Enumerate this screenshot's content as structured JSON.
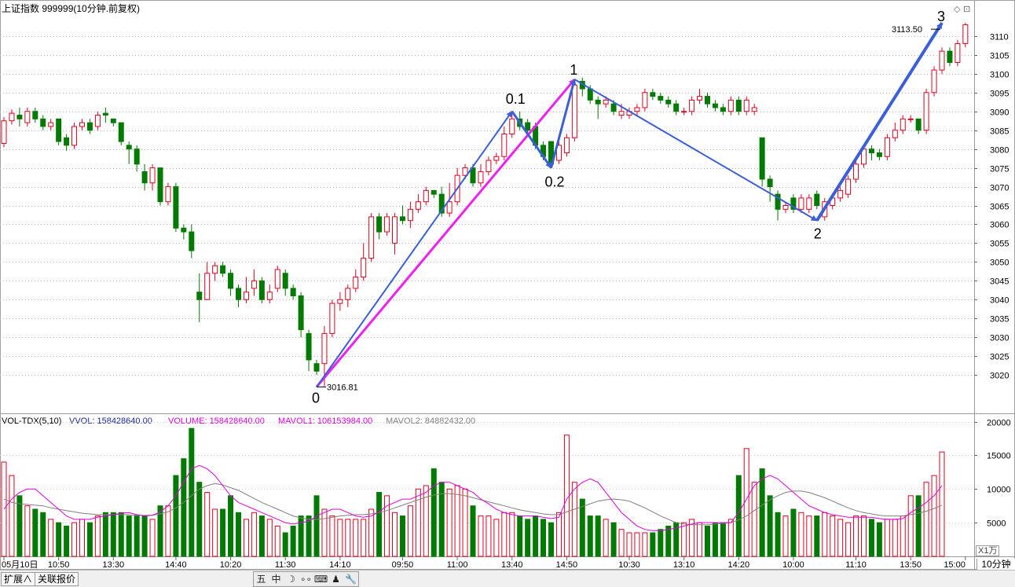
{
  "header": {
    "title": "上证指数 999999(10分钟.前复权)"
  },
  "vol_header": {
    "indicator": "VOL-TDX(5,10)",
    "vvol": "VVOL: 158428640.00",
    "volume": "VOLUME: 158428640.00",
    "mavol1": "MAVOL1: 106153984.00",
    "mavol2": "MAVOL2: 84882432.00"
  },
  "price_labels": {
    "low": "3016.81",
    "high": "3113.50"
  },
  "wave_labels": [
    "0",
    "0.1",
    "0.2",
    "1",
    "2",
    "3"
  ],
  "x_axis_labels": [
    "05月10日",
    "10:50",
    "13:30",
    "14:40",
    "10:20",
    "11:30",
    "14:10",
    "09:50",
    "11:00",
    "13:40",
    "14:50",
    "10:30",
    "13:10",
    "14:20",
    "10:00",
    "11:10",
    "13:50",
    "15:00"
  ],
  "volume_unit": "X1万",
  "period": "10分钟",
  "status_bar": {
    "tab_expand": "扩展∧",
    "tab_related": "关联报价",
    "tools": [
      "五",
      "中",
      "☽",
      "∘∘",
      "⌨",
      "♟",
      "🔧"
    ]
  },
  "colors": {
    "up": "#e0001e",
    "down": "#007a00",
    "mavol1": "#e000e0",
    "mavol2": "#808080",
    "wave_arrow": "#3a5fd8",
    "wave_pink": "#ee22ee"
  },
  "chart_data": [
    {
      "type": "candlestick",
      "ylim": [
        3010,
        3115
      ],
      "yticks": [
        3020,
        3025,
        3030,
        3035,
        3040,
        3045,
        3050,
        3055,
        3060,
        3065,
        3070,
        3075,
        3080,
        3085,
        3090,
        3095,
        3100,
        3105,
        3110
      ],
      "candles": [
        [
          3081.5,
          3087.5,
          3088.5,
          3080.5
        ],
        [
          3087.5,
          3089.5,
          3090.5,
          3086.5
        ],
        [
          3089,
          3088,
          3091,
          3086
        ],
        [
          3087,
          3090,
          3091,
          3086
        ],
        [
          3090,
          3088,
          3091,
          3087
        ],
        [
          3088,
          3086,
          3089,
          3085
        ],
        [
          3086,
          3087,
          3088,
          3085
        ],
        [
          3088,
          3082,
          3088,
          3081
        ],
        [
          3083,
          3081,
          3084,
          3079.5
        ],
        [
          3081,
          3086,
          3087,
          3080
        ],
        [
          3086,
          3087,
          3088,
          3085
        ],
        [
          3087,
          3085,
          3088,
          3084
        ],
        [
          3086,
          3089,
          3090,
          3085
        ],
        [
          3089.5,
          3089,
          3091,
          3087
        ],
        [
          3088,
          3087,
          3088,
          3086
        ],
        [
          3087,
          3082,
          3087,
          3081
        ],
        [
          3081,
          3080,
          3082,
          3076
        ],
        [
          3080,
          3076,
          3081,
          3074
        ],
        [
          3074,
          3071,
          3076,
          3069
        ],
        [
          3071,
          3075,
          3076,
          3069
        ],
        [
          3075,
          3066,
          3075,
          3065
        ],
        [
          3066,
          3070,
          3071,
          3065
        ],
        [
          3070,
          3059,
          3071,
          3058
        ],
        [
          3059,
          3058,
          3060,
          3056
        ],
        [
          3058,
          3053,
          3060,
          3051
        ],
        [
          3042,
          3040,
          3047,
          3034
        ],
        [
          3040,
          3047,
          3050,
          3040
        ],
        [
          3047,
          3049,
          3050,
          3045
        ],
        [
          3049,
          3047,
          3050,
          3046
        ],
        [
          3047,
          3043,
          3048,
          3041
        ],
        [
          3043,
          3040,
          3044,
          3038
        ],
        [
          3040,
          3042,
          3046,
          3039
        ],
        [
          3043,
          3045,
          3048,
          3041
        ],
        [
          3045,
          3040,
          3046,
          3039
        ],
        [
          3040,
          3042,
          3044,
          3039
        ],
        [
          3043,
          3048,
          3049,
          3042
        ],
        [
          3047,
          3043,
          3048,
          3041
        ],
        [
          3043,
          3041,
          3044,
          3040
        ],
        [
          3041,
          3032,
          3042,
          3030
        ],
        [
          3031,
          3024,
          3032,
          3021
        ],
        [
          3023,
          3021,
          3024,
          3020
        ],
        [
          3023,
          3031,
          3033,
          3017
        ],
        [
          3031,
          3039,
          3040,
          3030
        ],
        [
          3039,
          3040,
          3042,
          3037
        ],
        [
          3040,
          3043,
          3044,
          3038
        ],
        [
          3043,
          3046,
          3048,
          3042
        ],
        [
          3046,
          3051,
          3055,
          3045
        ],
        [
          3051,
          3062,
          3063,
          3050
        ],
        [
          3062,
          3058,
          3063,
          3056
        ],
        [
          3058,
          3062,
          3063,
          3057
        ],
        [
          3055,
          3062,
          3063,
          3052
        ],
        [
          3062,
          3061,
          3065,
          3060
        ],
        [
          3061,
          3064,
          3066,
          3059
        ],
        [
          3064,
          3066,
          3068,
          3063
        ],
        [
          3066,
          3069,
          3070,
          3065
        ],
        [
          3069,
          3068,
          3069,
          3067
        ],
        [
          3068,
          3063,
          3070,
          3062
        ],
        [
          3063,
          3066,
          3071,
          3062
        ],
        [
          3066,
          3073,
          3075,
          3065
        ],
        [
          3073,
          3075,
          3076,
          3072
        ],
        [
          3075,
          3071,
          3076,
          3070
        ],
        [
          3071,
          3074,
          3076,
          3070
        ],
        [
          3074,
          3077,
          3078,
          3073
        ],
        [
          3077,
          3078,
          3079,
          3076
        ],
        [
          3078,
          3084,
          3086,
          3077
        ],
        [
          3084,
          3088,
          3090,
          3083
        ],
        [
          3088,
          3086,
          3090,
          3085
        ],
        [
          3087,
          3085,
          3088,
          3084
        ],
        [
          3086,
          3081,
          3087,
          3080
        ],
        [
          3081,
          3078,
          3082,
          3077
        ],
        [
          3082,
          3076,
          3082,
          3075
        ],
        [
          3077,
          3081,
          3082,
          3076
        ],
        [
          3079,
          3083,
          3084,
          3078
        ],
        [
          3083,
          3097,
          3098,
          3082
        ],
        [
          3098,
          3096,
          3099,
          3094
        ],
        [
          3096,
          3093,
          3097,
          3092
        ],
        [
          3093,
          3092,
          3094,
          3088
        ],
        [
          3092,
          3093,
          3094,
          3091
        ],
        [
          3092,
          3090,
          3093,
          3089
        ],
        [
          3089,
          3090,
          3092,
          3088
        ],
        [
          3089,
          3090,
          3091,
          3088
        ],
        [
          3090,
          3091,
          3092,
          3089
        ],
        [
          3091,
          3095,
          3096,
          3090
        ],
        [
          3095,
          3094,
          3096,
          3093
        ],
        [
          3094,
          3093,
          3095,
          3092
        ],
        [
          3093,
          3092,
          3094,
          3091
        ],
        [
          3092,
          3090,
          3093,
          3089
        ],
        [
          3090,
          3090,
          3091,
          3089
        ],
        [
          3090,
          3093,
          3094,
          3089
        ],
        [
          3093,
          3094,
          3096,
          3092
        ],
        [
          3094,
          3092,
          3095,
          3091
        ],
        [
          3092,
          3091,
          3093,
          3090
        ],
        [
          3091,
          3090,
          3092,
          3089
        ],
        [
          3090,
          3093,
          3094,
          3089
        ],
        [
          3093,
          3090,
          3094,
          3089
        ],
        [
          3090,
          3093,
          3094,
          3089
        ],
        [
          3090,
          3091,
          3092,
          3089
        ],
        [
          3083,
          3072,
          3083,
          3070
        ],
        [
          3072,
          3070,
          3073,
          3066
        ],
        [
          3068,
          3064,
          3069,
          3061
        ],
        [
          3064,
          3065,
          3066,
          3063
        ],
        [
          3067,
          3064,
          3068,
          3063
        ],
        [
          3064,
          3067,
          3068,
          3063
        ],
        [
          3064,
          3067,
          3068,
          3063
        ],
        [
          3068,
          3065,
          3069,
          3064
        ],
        [
          3062,
          3066,
          3067,
          3061
        ],
        [
          3065,
          3067,
          3068,
          3064
        ],
        [
          3067,
          3069,
          3070,
          3066
        ],
        [
          3068,
          3072,
          3073,
          3067
        ],
        [
          3072,
          3076,
          3077,
          3071
        ],
        [
          3076,
          3080,
          3081,
          3075
        ],
        [
          3080,
          3079,
          3081,
          3077
        ],
        [
          3079,
          3078,
          3080,
          3077
        ],
        [
          3078,
          3083,
          3084,
          3077
        ],
        [
          3083,
          3085,
          3087,
          3082
        ],
        [
          3085,
          3088,
          3089,
          3084
        ],
        [
          3088,
          3088,
          3089,
          3087
        ],
        [
          3088,
          3085,
          3088,
          3084
        ],
        [
          3085,
          3095,
          3096,
          3084
        ],
        [
          3095,
          3101,
          3102,
          3094
        ],
        [
          3101,
          3106,
          3107,
          3100
        ],
        [
          3106,
          3103,
          3107,
          3102
        ],
        [
          3103,
          3108,
          3109,
          3102
        ],
        [
          3108,
          3113,
          3113.5,
          3107
        ]
      ]
    },
    {
      "type": "bar",
      "ylim": [
        0,
        21000
      ],
      "yticks": [
        5000,
        10000,
        15000,
        20000
      ],
      "series": [
        {
          "name": "VOLUME",
          "values": [
            14000,
            12000,
            9000,
            7500,
            7000,
            6500,
            5500,
            5000,
            4500,
            5000,
            5500,
            5000,
            6000,
            6500,
            6500,
            6500,
            6000,
            6000,
            6000,
            5500,
            7500,
            7500,
            12000,
            14500,
            19000,
            11000,
            9500,
            7000,
            7000,
            9000,
            6500,
            5500,
            6500,
            6000,
            5500,
            4500,
            3500,
            4500,
            6000,
            6000,
            9000,
            7000,
            6000,
            5500,
            5500,
            5500,
            5500,
            7000,
            9500,
            9000,
            6500,
            6000,
            7500,
            10000,
            10500,
            13000,
            11000,
            10000,
            10500,
            10000,
            7500,
            6000,
            6000,
            5500,
            6500,
            6500,
            6000,
            5500,
            6000,
            5500,
            5000,
            6500,
            18000,
            11000,
            8500,
            6000,
            6000,
            5500,
            5000,
            4000,
            3500,
            3500,
            3500,
            3500,
            4000,
            4500,
            5000,
            5000,
            5500,
            5000,
            4500,
            5000,
            5000,
            5500,
            12000,
            16000,
            11000,
            13000,
            9000,
            6500,
            6000,
            7000,
            6500,
            6000,
            6000,
            6500,
            6000,
            5500,
            5000,
            6000,
            6000,
            5500,
            5000,
            5500,
            5500,
            6000,
            9000,
            9000,
            11000,
            12000,
            15500
          ]
        },
        {
          "name": "MAVOL1",
          "values": [
            7000,
            8500,
            9500,
            10000,
            10000,
            9000,
            8000,
            7000,
            6000,
            5500,
            5500,
            5500,
            5800,
            6000,
            6200,
            6400,
            6500,
            6200,
            6000,
            6100,
            6600,
            7500,
            9000,
            11000,
            13000,
            13500,
            13000,
            12000,
            10500,
            9000,
            8000,
            7500,
            7000,
            6500,
            6000,
            5500,
            5000,
            4800,
            5000,
            5200,
            6000,
            6500,
            7000,
            7000,
            6500,
            6000,
            5800,
            6000,
            6600,
            7500,
            8000,
            8500,
            8500,
            9000,
            9500,
            10500,
            11000,
            11000,
            10500,
            10000,
            9500,
            8500,
            7800,
            7000,
            6500,
            6200,
            6000,
            6000,
            6000,
            5800,
            5600,
            5800,
            8500,
            10000,
            11000,
            11500,
            11000,
            9500,
            8000,
            6500,
            5500,
            4500,
            4000,
            3800,
            3800,
            4000,
            4200,
            4500,
            4800,
            5000,
            5000,
            5000,
            5000,
            5000,
            6500,
            8500,
            10500,
            11500,
            12000,
            11500,
            10500,
            9500,
            8500,
            7500,
            7000,
            6500,
            6200,
            6000,
            5800,
            5800,
            5800,
            5800,
            5600,
            5500,
            5500,
            5600,
            6500,
            7200,
            8000,
            9000,
            10500
          ]
        },
        {
          "name": "MAVOL2",
          "values": [
            8500,
            8000,
            7800,
            7700,
            7600,
            7500,
            7200,
            7000,
            6800,
            6600,
            6400,
            6300,
            6200,
            6200,
            6200,
            6200,
            6200,
            6100,
            6100,
            6100,
            6300,
            6600,
            7200,
            8000,
            9000,
            10000,
            10500,
            10800,
            10600,
            10200,
            9800,
            9200,
            8600,
            8000,
            7500,
            7000,
            6500,
            6000,
            5700,
            5500,
            5500,
            5600,
            5800,
            6000,
            6100,
            6200,
            6200,
            6300,
            6500,
            6800,
            7200,
            7600,
            8000,
            8400,
            8800,
            9100,
            9300,
            9300,
            9200,
            9000,
            8700,
            8400,
            8100,
            7800,
            7500,
            7200,
            6900,
            6700,
            6500,
            6300,
            6200,
            6200,
            6600,
            7000,
            7400,
            7800,
            8200,
            8400,
            8500,
            8400,
            8200,
            7700,
            7200,
            6600,
            6000,
            5500,
            5000,
            4800,
            4700,
            4700,
            4700,
            4800,
            4900,
            5000,
            5400,
            6000,
            6800,
            7600,
            8400,
            9000,
            9500,
            9700,
            9700,
            9500,
            9100,
            8700,
            8200,
            7700,
            7200,
            6800,
            6500,
            6300,
            6100,
            6000,
            6000,
            6000,
            6200,
            6400,
            6700,
            7100,
            7600
          ]
        }
      ]
    }
  ]
}
